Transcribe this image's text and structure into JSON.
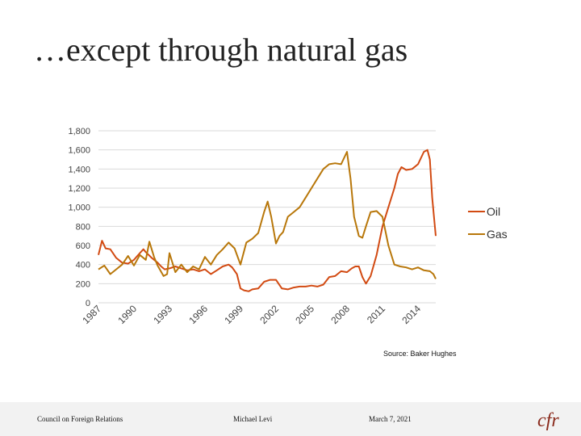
{
  "slide": {
    "title": "…except through natural gas"
  },
  "source_note": "Source: Baker Hughes",
  "footer": {
    "org": "Council on Foreign Relations",
    "author": "Michael Levi",
    "date": "March 7, 2021",
    "logo_text": "cfr"
  },
  "colors": {
    "oil": "#d24a12",
    "gas": "#b8770a",
    "grid": "#d9d9d9",
    "logo": "#8a2a1c"
  },
  "chart_data": {
    "type": "line",
    "title": "",
    "xlabel": "",
    "ylabel": "",
    "xlim": [
      1987,
      2015.5
    ],
    "ylim": [
      0,
      1800
    ],
    "yticks": [
      0,
      200,
      400,
      600,
      800,
      1000,
      1200,
      1400,
      1600,
      1800
    ],
    "ytick_labels": [
      "0",
      "200",
      "400",
      "600",
      "800",
      "1,000",
      "1,200",
      "1,400",
      "1,600",
      "1,800"
    ],
    "xticks": [
      1987,
      1990,
      1993,
      1996,
      1999,
      2002,
      2005,
      2008,
      2011,
      2014
    ],
    "xtick_labels": [
      "1987",
      "1990",
      "1993",
      "1996",
      "1999",
      "2002",
      "2005",
      "2008",
      "2011",
      "2014"
    ],
    "legend": {
      "position": "right"
    },
    "series": [
      {
        "name": "Oil",
        "x": [
          1987,
          1987.3,
          1987.6,
          1988,
          1988.5,
          1989,
          1989.5,
          1990,
          1990.5,
          1990.8,
          1991,
          1991.5,
          1992,
          1992.3,
          1992.6,
          1993,
          1993.5,
          1994,
          1994.5,
          1995,
          1995.5,
          1996,
          1996.5,
          1997,
          1997.5,
          1998,
          1998.3,
          1998.7,
          1999,
          1999.3,
          1999.7,
          2000,
          2000.5,
          2001,
          2001.5,
          2002,
          2002.5,
          2003,
          2003.5,
          2004,
          2004.5,
          2005,
          2005.5,
          2006,
          2006.5,
          2007,
          2007.5,
          2008,
          2008.4,
          2008.7,
          2009,
          2009.3,
          2009.6,
          2010,
          2010.5,
          2011,
          2011.5,
          2012,
          2012.3,
          2012.6,
          2013,
          2013.5,
          2014,
          2014.5,
          2014.8,
          2015,
          2015.2,
          2015.5
        ],
        "values": [
          500,
          650,
          570,
          560,
          470,
          420,
          410,
          450,
          520,
          560,
          530,
          470,
          420,
          380,
          350,
          360,
          380,
          360,
          340,
          350,
          330,
          350,
          300,
          340,
          380,
          400,
          370,
          300,
          150,
          130,
          120,
          140,
          150,
          220,
          240,
          240,
          150,
          140,
          160,
          170,
          170,
          180,
          170,
          190,
          270,
          280,
          330,
          320,
          360,
          380,
          380,
          270,
          200,
          280,
          500,
          800,
          1000,
          1200,
          1350,
          1420,
          1390,
          1400,
          1450,
          1580,
          1600,
          1500,
          1100,
          700
        ]
      },
      {
        "name": "Gas",
        "x": [
          1987,
          1987.5,
          1988,
          1988.5,
          1989,
          1989.5,
          1990,
          1990.5,
          1991,
          1991.3,
          1991.7,
          1992,
          1992.5,
          1992.8,
          1993,
          1993.5,
          1994,
          1994.5,
          1995,
          1995.5,
          1996,
          1996.5,
          1997,
          1997.5,
          1998,
          1998.5,
          1999,
          1999.5,
          2000,
          2000.5,
          2001,
          2001.3,
          2001.6,
          2002,
          2002.3,
          2002.6,
          2003,
          2003.5,
          2004,
          2004.5,
          2005,
          2005.5,
          2006,
          2006.5,
          2007,
          2007.5,
          2008,
          2008.3,
          2008.6,
          2009,
          2009.3,
          2009.6,
          2010,
          2010.5,
          2011,
          2011.5,
          2012,
          2012.5,
          2013,
          2013.5,
          2014,
          2014.5,
          2015,
          2015.3,
          2015.5
        ],
        "values": [
          350,
          390,
          300,
          350,
          400,
          490,
          390,
          500,
          450,
          640,
          480,
          390,
          280,
          300,
          520,
          320,
          400,
          320,
          380,
          350,
          480,
          400,
          500,
          560,
          630,
          570,
          400,
          630,
          670,
          730,
          950,
          1060,
          900,
          620,
          700,
          740,
          900,
          950,
          1000,
          1100,
          1200,
          1300,
          1400,
          1450,
          1460,
          1450,
          1580,
          1300,
          900,
          700,
          680,
          800,
          950,
          960,
          900,
          600,
          400,
          380,
          370,
          350,
          370,
          340,
          330,
          300,
          250
        ]
      }
    ]
  }
}
